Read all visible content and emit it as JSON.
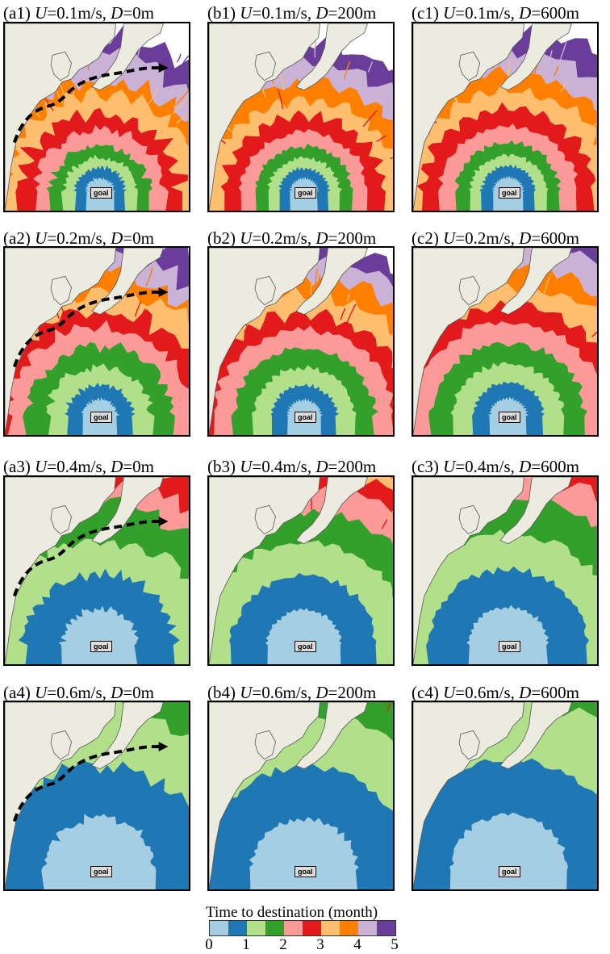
{
  "panels": [
    {
      "id": "a1",
      "label": "(a1)",
      "u": "0.1m/s",
      "d": "0m",
      "goal": "goal",
      "stage": 0,
      "depth": 0,
      "route": true
    },
    {
      "id": "b1",
      "label": "(b1)",
      "u": "0.1m/s",
      "d": "200m",
      "goal": "goal",
      "stage": 0,
      "depth": 1,
      "route": false
    },
    {
      "id": "c1",
      "label": "(c1)",
      "u": "0.1m/s",
      "d": "600m",
      "goal": "goal",
      "stage": 0,
      "depth": 2,
      "route": false
    },
    {
      "id": "a2",
      "label": "(a2)",
      "u": "0.2m/s",
      "d": "0m",
      "goal": "goal",
      "stage": 1,
      "depth": 0,
      "route": true
    },
    {
      "id": "b2",
      "label": "(b2)",
      "u": "0.2m/s",
      "d": "200m",
      "goal": "goal",
      "stage": 1,
      "depth": 1,
      "route": false
    },
    {
      "id": "c2",
      "label": "(c2)",
      "u": "0.2m/s",
      "d": "600m",
      "goal": "goal",
      "stage": 1,
      "depth": 2,
      "route": false
    },
    {
      "id": "a3",
      "label": "(a3)",
      "u": "0.4m/s",
      "d": "0m",
      "goal": "goal",
      "stage": 2,
      "depth": 0,
      "route": true
    },
    {
      "id": "b3",
      "label": "(b3)",
      "u": "0.4m/s",
      "d": "200m",
      "goal": "goal",
      "stage": 2,
      "depth": 1,
      "route": false
    },
    {
      "id": "c3",
      "label": "(c3)",
      "u": "0.4m/s",
      "d": "600m",
      "goal": "goal",
      "stage": 2,
      "depth": 2,
      "route": false
    },
    {
      "id": "a4",
      "label": "(a4)",
      "u": "0.6m/s",
      "d": "0m",
      "goal": "goal",
      "stage": 3,
      "depth": 0,
      "route": true
    },
    {
      "id": "b4",
      "label": "(b4)",
      "u": "0.6m/s",
      "d": "200m",
      "goal": "goal",
      "stage": 3,
      "depth": 1,
      "route": false
    },
    {
      "id": "c4",
      "label": "(c4)",
      "u": "0.6m/s",
      "d": "600m",
      "goal": "goal",
      "stage": 3,
      "depth": 2,
      "route": false
    }
  ],
  "symbols": {
    "u": "U",
    "d": "D",
    "eq": "=",
    "sep": ", "
  },
  "legend": {
    "title": "Time to destination (month)",
    "colors": [
      "#a6cee3",
      "#1f78b4",
      "#b2df8a",
      "#33a02c",
      "#fb9a99",
      "#e31a1c",
      "#fdbf6f",
      "#ff7f00",
      "#cab2d6",
      "#6a3d9a"
    ],
    "ticks": [
      "0",
      "1",
      "2",
      "3",
      "4",
      "5"
    ]
  },
  "land_color": "#ecebdf"
}
